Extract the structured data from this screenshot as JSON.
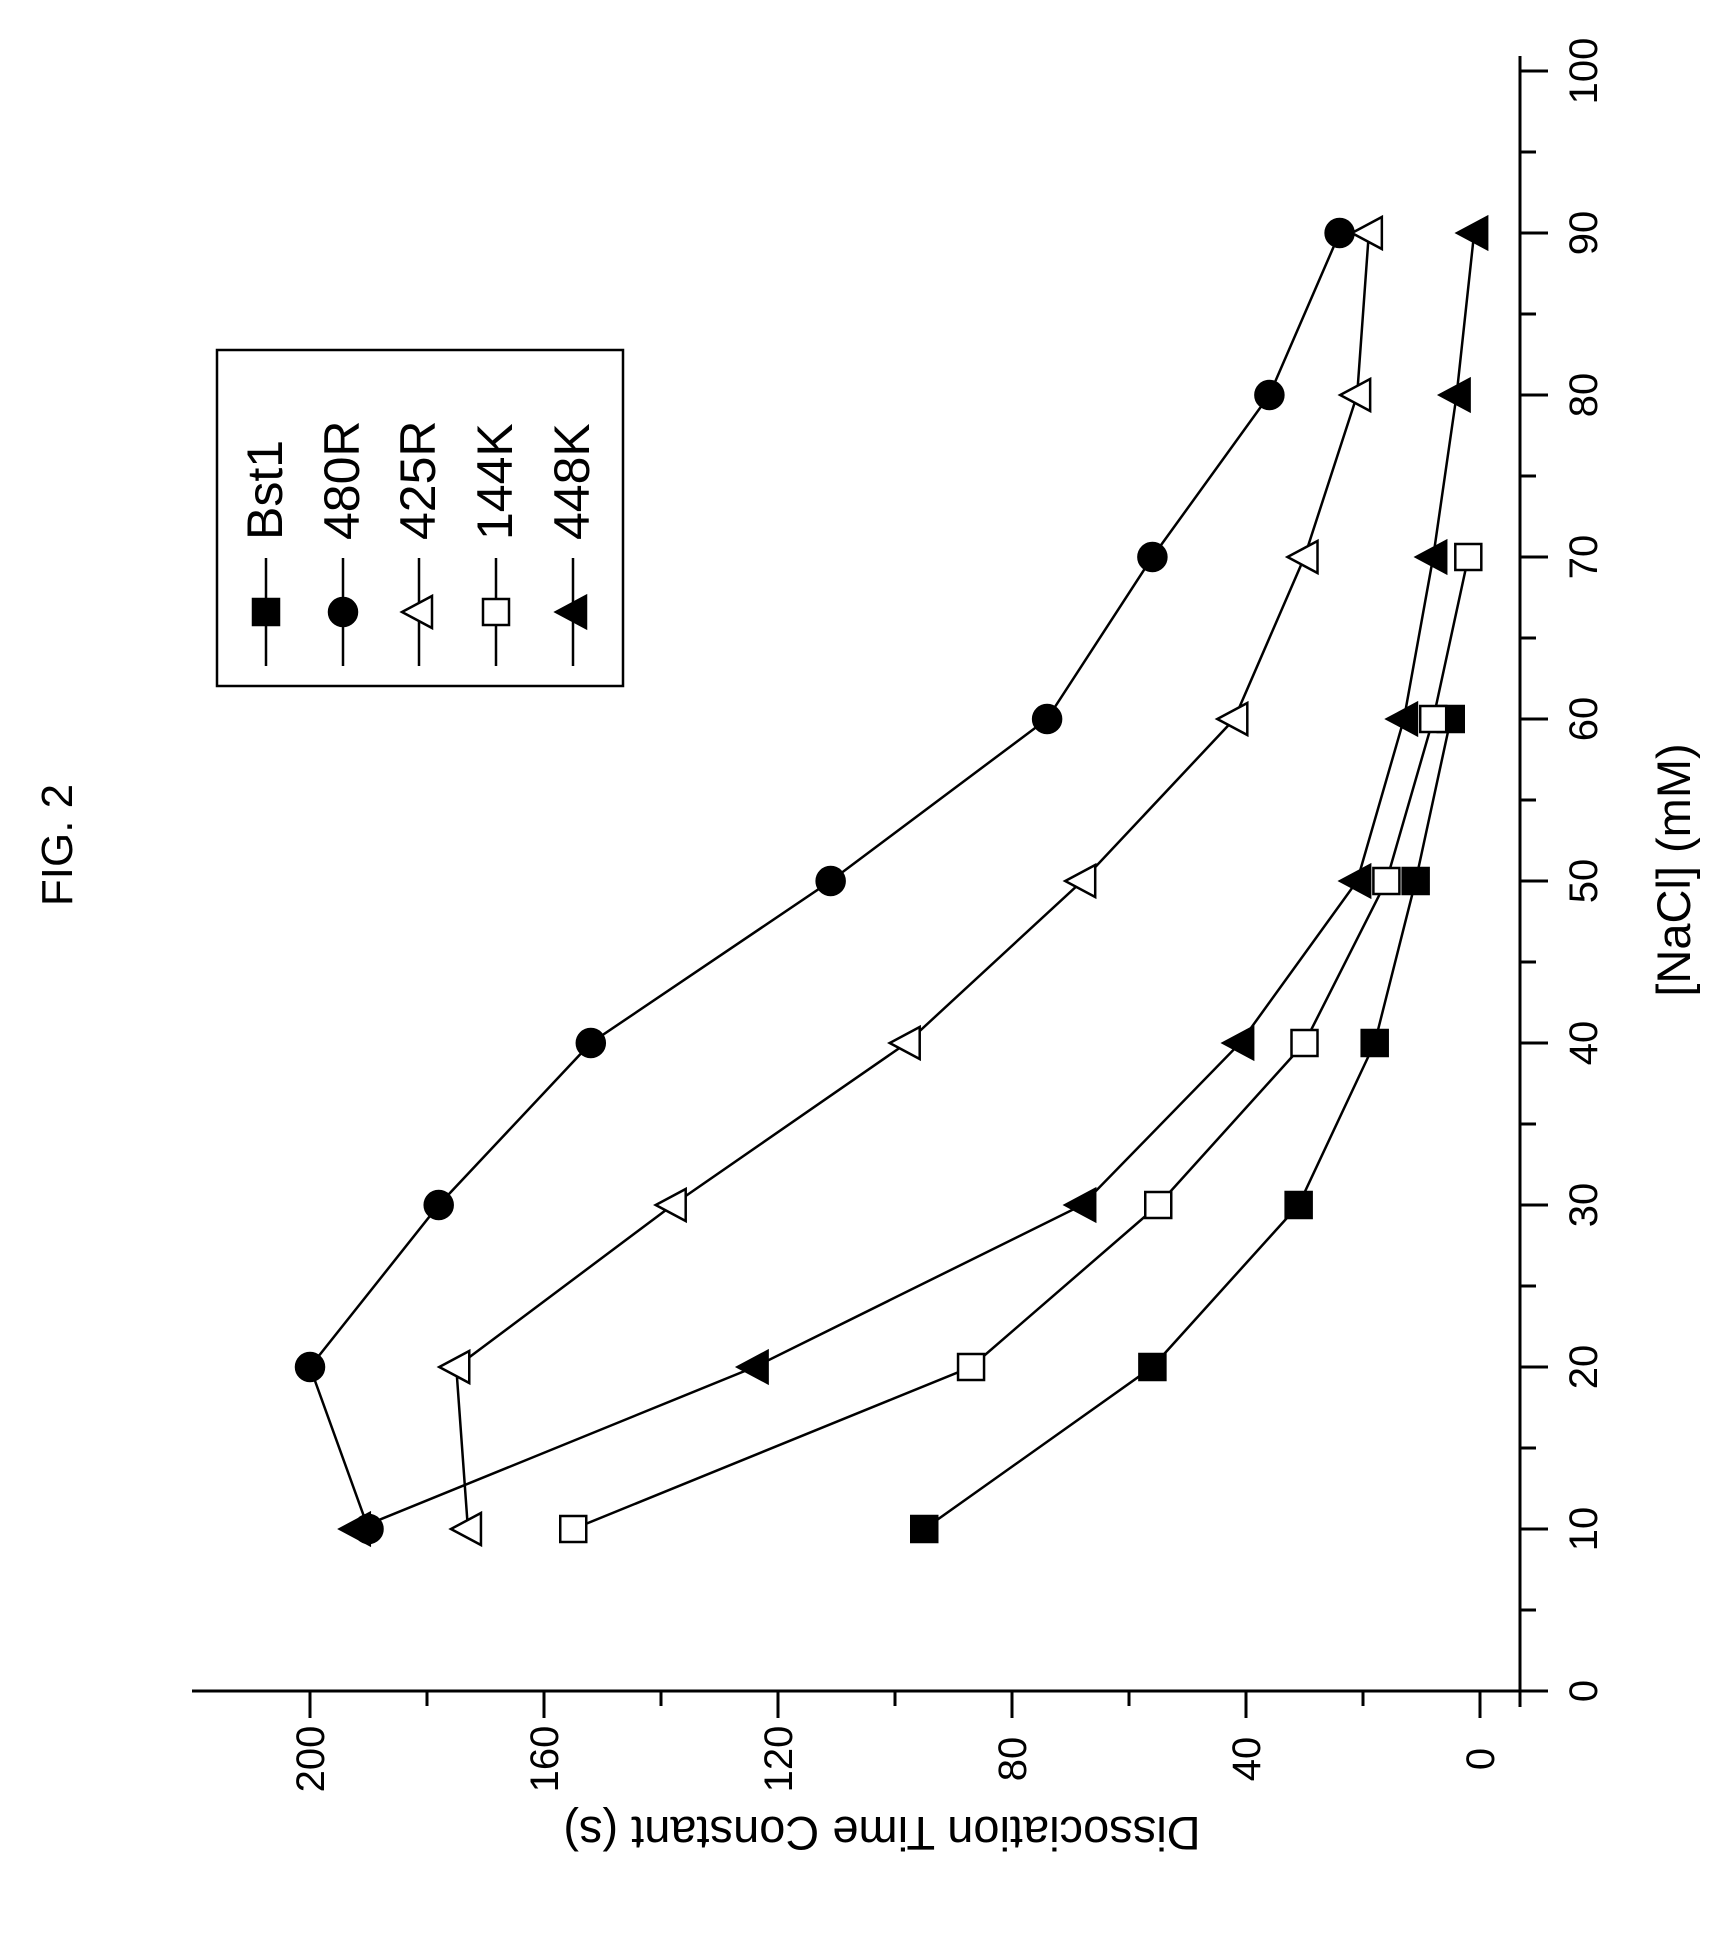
{
  "figure_label": "FIG. 2",
  "chart_data": {
    "type": "line",
    "orientation": "rotated 90 degrees counter-clockwise",
    "xlabel": "[NaCl] (mM)",
    "ylabel": "Dissociation Time Constant (s)",
    "xlim": [
      0,
      100
    ],
    "ylim": [
      -7,
      220
    ],
    "x_ticks": [
      0,
      10,
      20,
      30,
      40,
      50,
      60,
      70,
      80,
      90,
      100
    ],
    "y_ticks": [
      0,
      40,
      80,
      120,
      160,
      200
    ],
    "grid": false,
    "legend_position": "upper-left",
    "series": [
      {
        "name": "Bst1",
        "marker": "filled-square",
        "x": [
          10,
          20,
          30,
          40,
          50,
          60
        ],
        "y": [
          95,
          56,
          31,
          18,
          11,
          5
        ]
      },
      {
        "name": "480R",
        "marker": "filled-circle",
        "x": [
          10,
          20,
          30,
          40,
          50,
          60,
          70,
          80,
          90
        ],
        "y": [
          190,
          200,
          178,
          152,
          111,
          74,
          56,
          36,
          24
        ]
      },
      {
        "name": "425R",
        "marker": "open-triangle",
        "x": [
          10,
          20,
          30,
          40,
          50,
          60,
          70,
          80,
          90
        ],
        "y": [
          173,
          175,
          138,
          98,
          68,
          42,
          30,
          21,
          19
        ]
      },
      {
        "name": "144K",
        "marker": "open-square",
        "x": [
          10,
          20,
          30,
          40,
          50,
          60,
          70
        ],
        "y": [
          155,
          87,
          55,
          30,
          16,
          8,
          2
        ]
      },
      {
        "name": "448K",
        "marker": "filled-triangle",
        "x": [
          10,
          20,
          30,
          40,
          50,
          60,
          70,
          80,
          90
        ],
        "y": [
          192,
          124,
          68,
          41,
          21,
          13,
          8,
          4,
          1
        ]
      }
    ]
  }
}
